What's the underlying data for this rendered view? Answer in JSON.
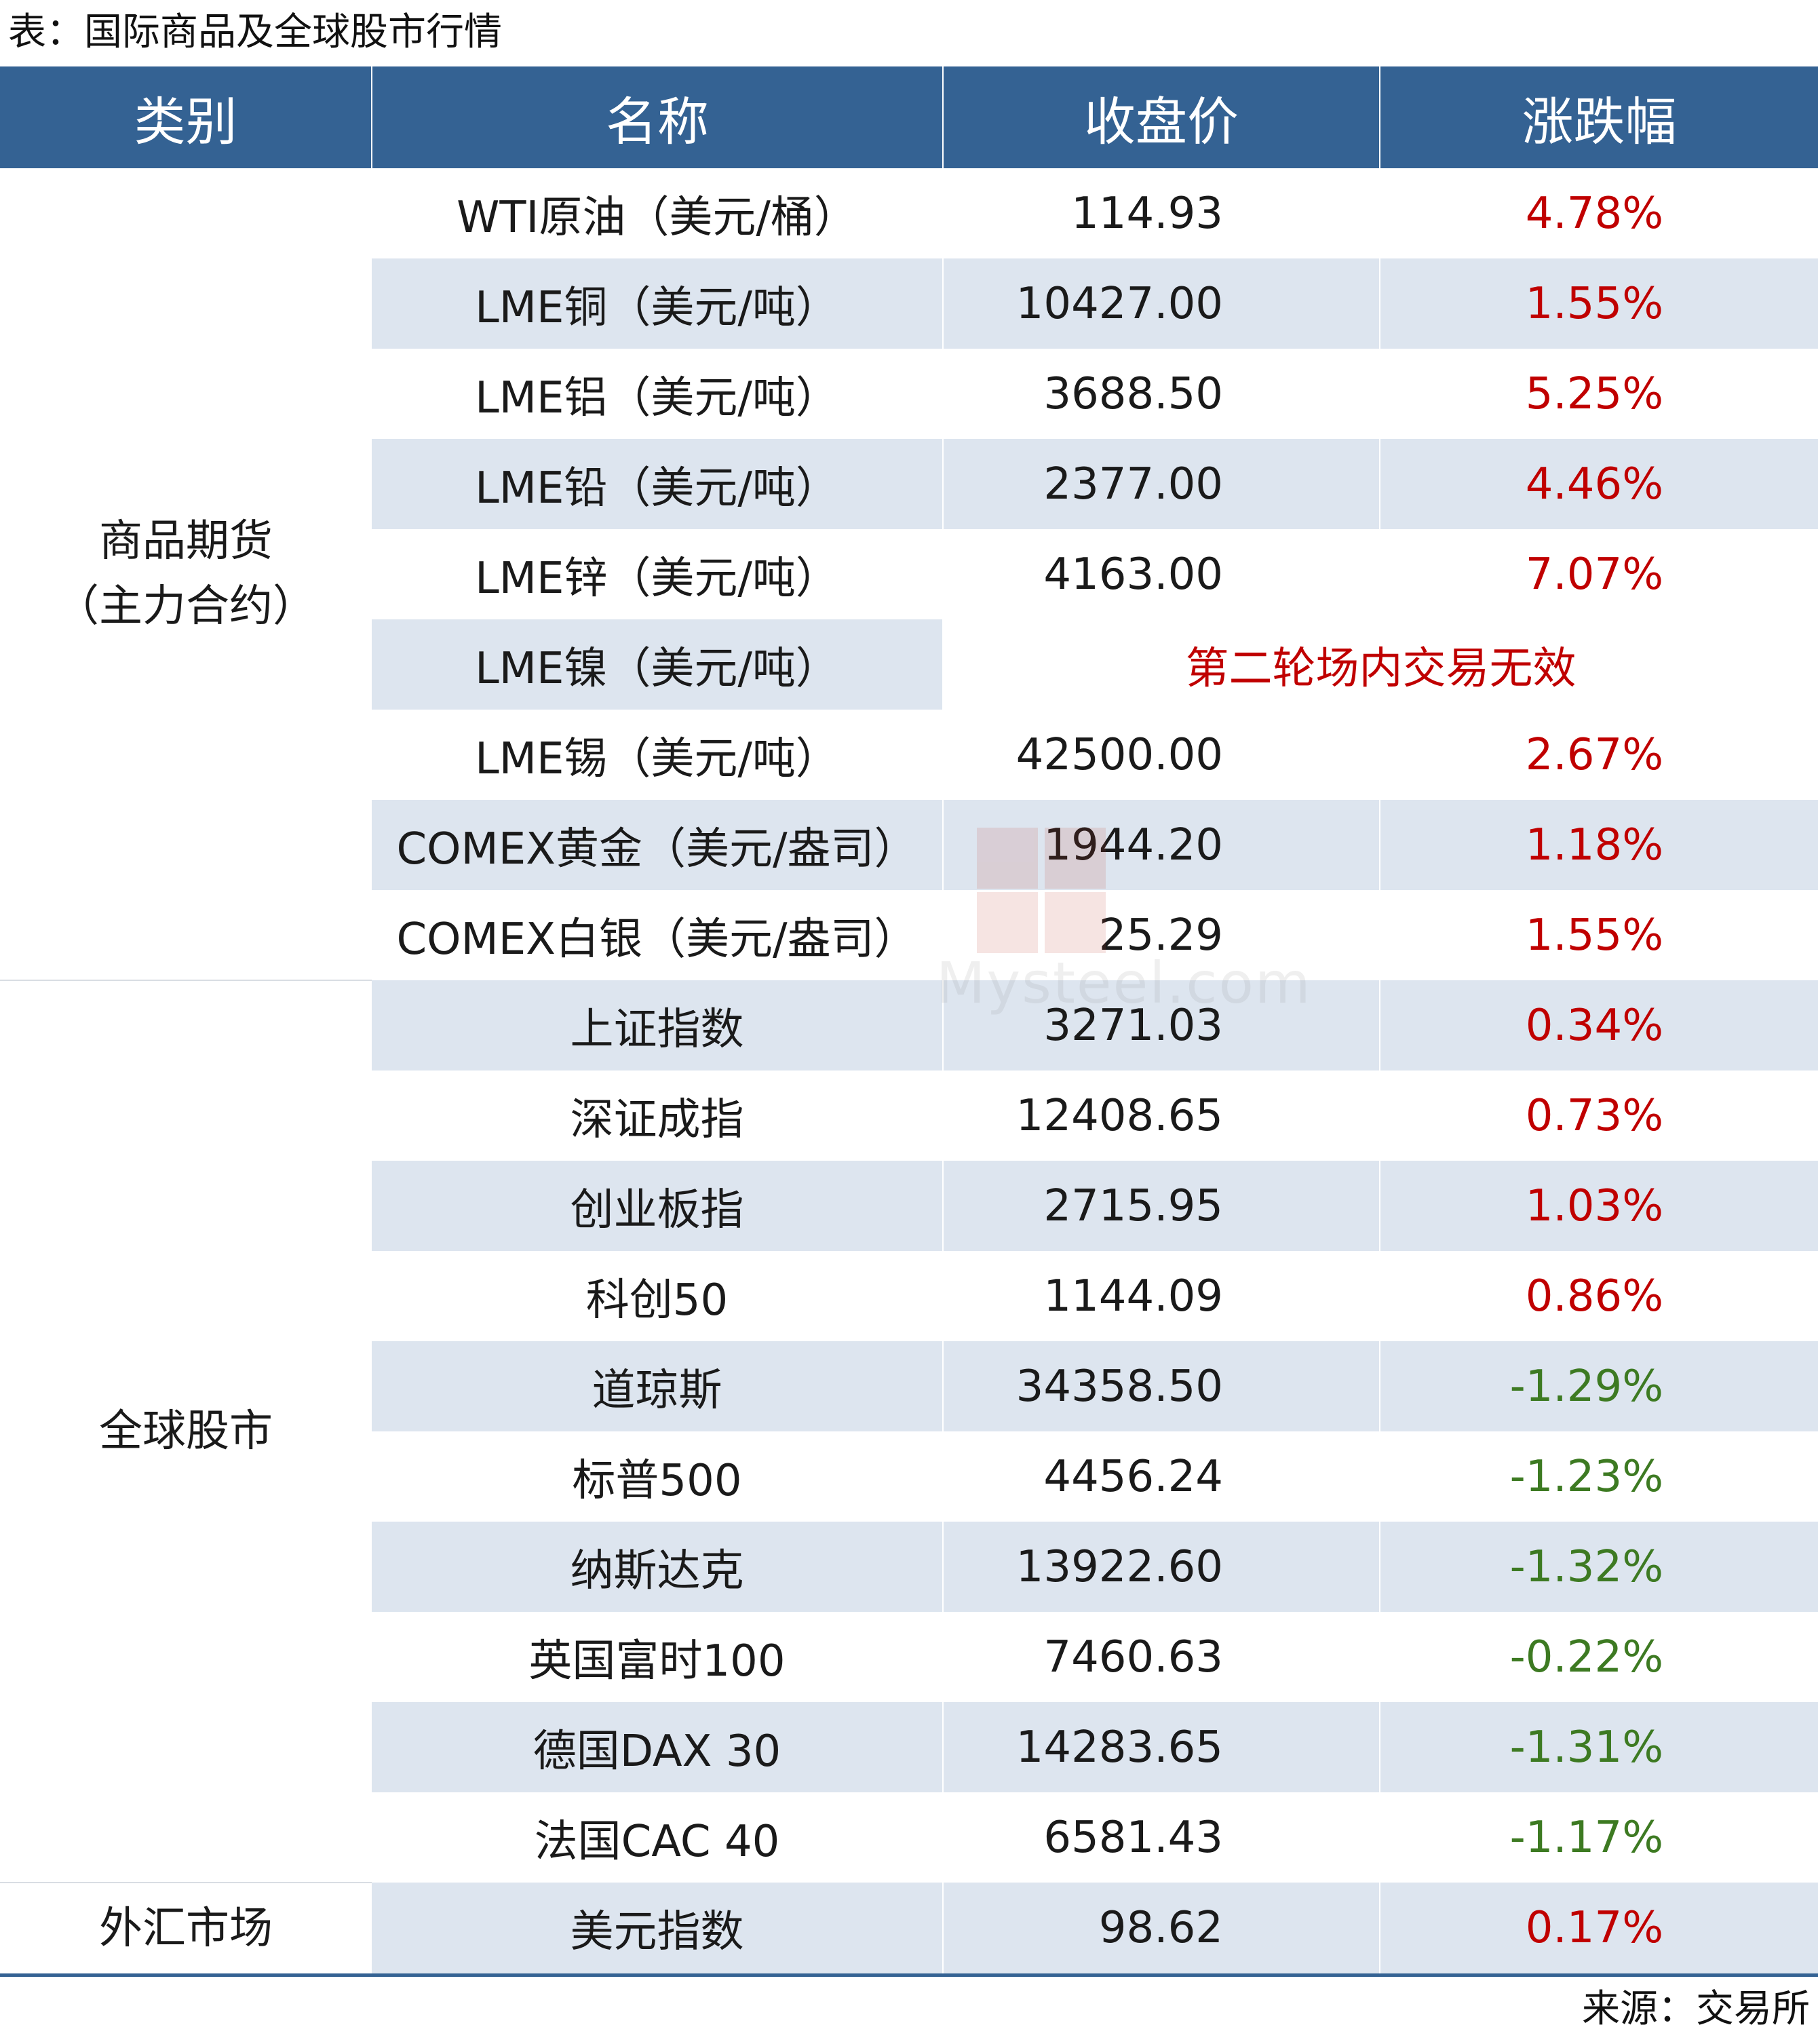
{
  "caption": "表：国际商品及全球股市行情",
  "source": "来源：交易所",
  "headers": [
    "类别",
    "名称",
    "收盘价",
    "涨跌幅"
  ],
  "colors": {
    "header_bg": "#346293",
    "row_shade": "#dde5ef",
    "up": "#c00000",
    "down": "#3d7a22"
  },
  "groups": [
    {
      "category_line1": "商品期货",
      "category_line2": "（主力合约）",
      "rows": [
        {
          "name": "WTI原油（美元/桶）",
          "price": "114.93",
          "change": "4.78%",
          "dir": "up"
        },
        {
          "name": "LME铜（美元/吨）",
          "price": "10427.00",
          "change": "1.55%",
          "dir": "up"
        },
        {
          "name": "LME铝（美元/吨）",
          "price": "3688.50",
          "change": "5.25%",
          "dir": "up"
        },
        {
          "name": "LME铅（美元/吨）",
          "price": "2377.00",
          "change": "4.46%",
          "dir": "up"
        },
        {
          "name": "LME锌（美元/吨）",
          "price": "4163.00",
          "change": "7.07%",
          "dir": "up"
        },
        {
          "name": "LME镍（美元/吨）",
          "merged_note": "第二轮场内交易无效"
        },
        {
          "name": "LME锡（美元/吨）",
          "price": "42500.00",
          "change": "2.67%",
          "dir": "up"
        },
        {
          "name": "COMEX黄金（美元/盎司）",
          "price": "1944.20",
          "change": "1.18%",
          "dir": "up"
        },
        {
          "name": "COMEX白银（美元/盎司）",
          "price": "25.29",
          "change": "1.55%",
          "dir": "up"
        }
      ]
    },
    {
      "category_line1": "全球股市",
      "rows": [
        {
          "name": "上证指数",
          "price": "3271.03",
          "change": "0.34%",
          "dir": "up"
        },
        {
          "name": "深证成指",
          "price": "12408.65",
          "change": "0.73%",
          "dir": "up"
        },
        {
          "name": "创业板指",
          "price": "2715.95",
          "change": "1.03%",
          "dir": "up"
        },
        {
          "name": "科创50",
          "price": "1144.09",
          "change": "0.86%",
          "dir": "up"
        },
        {
          "name": "道琼斯",
          "price": "34358.50",
          "change": "-1.29%",
          "dir": "down"
        },
        {
          "name": "标普500",
          "price": "4456.24",
          "change": "-1.23%",
          "dir": "down"
        },
        {
          "name": "纳斯达克",
          "price": "13922.60",
          "change": "-1.32%",
          "dir": "down"
        },
        {
          "name": "英国富时100",
          "price": "7460.63",
          "change": "-0.22%",
          "dir": "down"
        },
        {
          "name": "德国DAX 30",
          "price": "14283.65",
          "change": "-1.31%",
          "dir": "down"
        },
        {
          "name": "法国CAC 40",
          "price": "6581.43",
          "change": "-1.17%",
          "dir": "down"
        }
      ]
    },
    {
      "category_line1": "外汇市场",
      "rows": [
        {
          "name": "美元指数",
          "price": "98.62",
          "change": "0.17%",
          "dir": "up"
        }
      ]
    }
  ],
  "watermark": {
    "glyphs": [
      "我",
      "的",
      "钢",
      "铁"
    ],
    "text": "Mysteel.com"
  }
}
